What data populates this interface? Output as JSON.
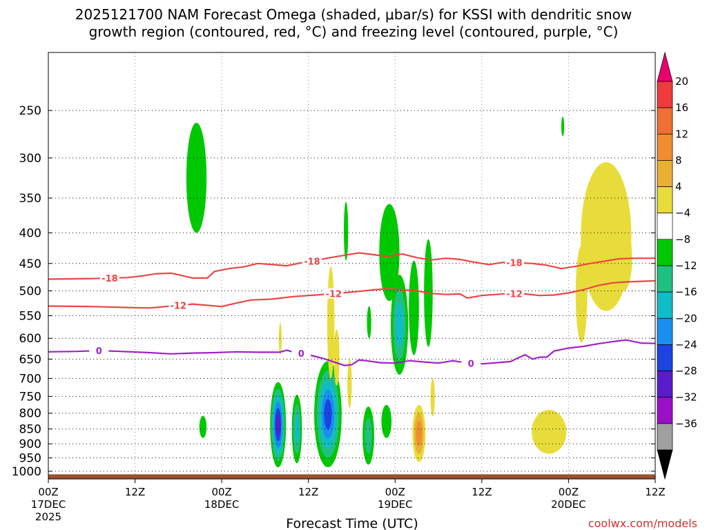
{
  "header": {
    "line1": "2025121700 NAM Forecast Omega (shaded, μbar/s) for KSSI with dendritic snow",
    "line2": "growth region (contoured, red, °C) and freezing level (contoured, purple, °C)"
  },
  "credit": "coolwx.com/models",
  "chart_data": {
    "type": "heatmap",
    "title": "2025121700 NAM Forecast Omega (shaded, μbar/s) for KSSI with dendritic snow growth region (contoured, red, °C) and freezing level (contoured, purple, °C)",
    "xlabel": "Forecast Time (UTC)",
    "ylabel": "",
    "x_unit": "forecast hour from 2025-12-17 00Z",
    "xlim": [
      0,
      84
    ],
    "ylim": [
      1030,
      200
    ],
    "y_scale": "log-pressure",
    "grid": true,
    "x_ticks": [
      {
        "hour": 0,
        "line1": "00Z",
        "line2": "17DEC",
        "line3": "2025"
      },
      {
        "hour": 12,
        "line1": "12Z",
        "line2": "",
        "line3": ""
      },
      {
        "hour": 24,
        "line1": "00Z",
        "line2": "18DEC",
        "line3": ""
      },
      {
        "hour": 36,
        "line1": "12Z",
        "line2": "",
        "line3": ""
      },
      {
        "hour": 48,
        "line1": "00Z",
        "line2": "19DEC",
        "line3": ""
      },
      {
        "hour": 60,
        "line1": "12Z",
        "line2": "",
        "line3": ""
      },
      {
        "hour": 72,
        "line1": "00Z",
        "line2": "20DEC",
        "line3": ""
      },
      {
        "hour": 84,
        "line1": "12Z",
        "line2": "",
        "line3": ""
      }
    ],
    "y_ticks": [
      250,
      300,
      350,
      400,
      450,
      500,
      550,
      600,
      650,
      700,
      750,
      800,
      850,
      900,
      950,
      1000
    ],
    "colorbar": {
      "levels": [
        "20",
        "16",
        "12",
        "8",
        "4",
        "−4",
        "−8",
        "−12",
        "−16",
        "−20",
        "−24",
        "−28",
        "−32",
        "−36"
      ],
      "colors": [
        "#e8006e",
        "#ee3b3b",
        "#ef6f35",
        "#ee8e2e",
        "#eaaf35",
        "#e8dc3a",
        "#ffffff",
        "#00c800",
        "#20c080",
        "#10bcc8",
        "#1a8ff0",
        "#1c44e0",
        "#5a1cc8",
        "#9a10c8",
        "#a0a0a0",
        "#000000"
      ]
    },
    "terrain": {
      "color": "#9a5030",
      "top_pressure": 1012
    },
    "contour_labels": [
      "-18",
      "-12",
      "0"
    ],
    "contours": [
      {
        "name": "-18",
        "color": "#ee4444",
        "points": [
          [
            0,
            478
          ],
          [
            6,
            477
          ],
          [
            11,
            475
          ],
          [
            13,
            472
          ],
          [
            15,
            468
          ],
          [
            17,
            467
          ],
          [
            20,
            476
          ],
          [
            22,
            476
          ],
          [
            23,
            464
          ],
          [
            25,
            459
          ],
          [
            27,
            456
          ],
          [
            29,
            450
          ],
          [
            31,
            452
          ],
          [
            33,
            454
          ],
          [
            35,
            449
          ],
          [
            37,
            445
          ],
          [
            39,
            440
          ],
          [
            41,
            436
          ],
          [
            43,
            432
          ],
          [
            45,
            435
          ],
          [
            47,
            438
          ],
          [
            49,
            434
          ],
          [
            51,
            440
          ],
          [
            53,
            444
          ],
          [
            55,
            441
          ],
          [
            57,
            443
          ],
          [
            59,
            448
          ],
          [
            61,
            452
          ],
          [
            63,
            448
          ],
          [
            65,
            449
          ],
          [
            67,
            450
          ],
          [
            69,
            453
          ],
          [
            71,
            459
          ],
          [
            73,
            455
          ],
          [
            75,
            450
          ],
          [
            77,
            446
          ],
          [
            79,
            442
          ],
          [
            81,
            441
          ],
          [
            84,
            441
          ]
        ],
        "label_hours": [
          8.5,
          36.5,
          64.5
        ]
      },
      {
        "name": "-12",
        "color": "#ee4444",
        "points": [
          [
            0,
            530
          ],
          [
            6,
            531
          ],
          [
            11,
            533
          ],
          [
            14,
            534
          ],
          [
            17,
            530
          ],
          [
            20,
            526
          ],
          [
            24,
            531
          ],
          [
            26,
            524
          ],
          [
            28,
            518
          ],
          [
            31,
            516
          ],
          [
            34,
            511
          ],
          [
            37,
            508
          ],
          [
            40,
            505
          ],
          [
            43,
            501
          ],
          [
            45,
            498
          ],
          [
            47,
            496
          ],
          [
            49,
            498
          ],
          [
            51,
            500
          ],
          [
            53,
            505
          ],
          [
            55,
            507
          ],
          [
            57,
            506
          ],
          [
            58,
            514
          ],
          [
            60,
            509
          ],
          [
            62,
            507
          ],
          [
            64,
            505
          ],
          [
            66,
            506
          ],
          [
            68,
            509
          ],
          [
            70,
            508
          ],
          [
            72,
            504
          ],
          [
            74,
            498
          ],
          [
            76,
            490
          ],
          [
            78,
            485
          ],
          [
            80,
            483
          ],
          [
            84,
            481
          ]
        ],
        "label_hours": [
          18,
          39.5,
          64.5
        ]
      },
      {
        "name": "0",
        "color": "#a020c8",
        "points": [
          [
            0,
            632
          ],
          [
            4,
            631
          ],
          [
            7,
            629
          ],
          [
            10,
            631
          ],
          [
            14,
            634
          ],
          [
            17,
            637
          ],
          [
            20,
            635
          ],
          [
            23,
            634
          ],
          [
            26,
            632
          ],
          [
            29,
            633
          ],
          [
            32,
            633
          ],
          [
            33,
            628
          ],
          [
            34,
            633
          ],
          [
            36,
            639
          ],
          [
            38,
            648
          ],
          [
            40,
            660
          ],
          [
            41,
            666
          ],
          [
            42,
            664
          ],
          [
            43,
            652
          ],
          [
            44,
            654
          ],
          [
            46,
            659
          ],
          [
            48,
            660
          ],
          [
            50,
            654
          ],
          [
            52,
            657
          ],
          [
            54,
            660
          ],
          [
            56,
            654
          ],
          [
            58,
            660
          ],
          [
            60,
            662
          ],
          [
            62,
            659
          ],
          [
            64,
            656
          ],
          [
            65,
            647
          ],
          [
            66,
            639
          ],
          [
            67,
            650
          ],
          [
            68,
            645
          ],
          [
            69,
            645
          ],
          [
            70,
            630
          ],
          [
            72,
            623
          ],
          [
            74,
            619
          ],
          [
            76,
            613
          ],
          [
            78,
            608
          ],
          [
            80,
            604
          ],
          [
            82,
            611
          ],
          [
            84,
            612
          ]
        ],
        "label_hours": [
          7,
          35,
          58.5
        ]
      }
    ],
    "omega_blobs": [
      {
        "h": 20.5,
        "p": 320,
        "w": 1.4,
        "ptop": 262,
        "pbot": 400,
        "value": -6
      },
      {
        "h": 71.2,
        "p": 265,
        "w": 0.2,
        "ptop": 256,
        "pbot": 276,
        "value": -6
      },
      {
        "h": 41.2,
        "p": 400,
        "w": 0.3,
        "ptop": 355,
        "pbot": 445,
        "value": -6
      },
      {
        "h": 47.2,
        "p": 440,
        "w": 1.4,
        "ptop": 358,
        "pbot": 520,
        "value": -6
      },
      {
        "h": 48.6,
        "p": 560,
        "w": 1.2,
        "ptop": 470,
        "pbot": 690,
        "value": -12
      },
      {
        "h": 50.6,
        "p": 540,
        "w": 0.7,
        "ptop": 445,
        "pbot": 640,
        "value": -6
      },
      {
        "h": 52.6,
        "p": 500,
        "w": 0.6,
        "ptop": 410,
        "pbot": 620,
        "value": -6
      },
      {
        "h": 44.4,
        "p": 565,
        "w": 0.3,
        "ptop": 530,
        "pbot": 600,
        "value": -6
      },
      {
        "h": 21.4,
        "p": 840,
        "w": 0.5,
        "ptop": 808,
        "pbot": 880,
        "value": -6
      },
      {
        "h": 31.8,
        "p": 845,
        "w": 1.1,
        "ptop": 710,
        "pbot": 985,
        "value": -26
      },
      {
        "h": 34.4,
        "p": 850,
        "w": 0.7,
        "ptop": 745,
        "pbot": 970,
        "value": -14
      },
      {
        "h": 38.7,
        "p": 850,
        "w": 1.9,
        "ptop": 655,
        "pbot": 985,
        "value": -22
      },
      {
        "h": 44.3,
        "p": 860,
        "w": 0.8,
        "ptop": 780,
        "pbot": 975,
        "value": -8
      },
      {
        "h": 46.8,
        "p": 825,
        "w": 0.7,
        "ptop": 775,
        "pbot": 880,
        "value": -6
      },
      {
        "h": 77.2,
        "p": 420,
        "w": 3.5,
        "ptop": 305,
        "pbot": 540,
        "value": 5
      },
      {
        "h": 73.8,
        "p": 480,
        "w": 0.8,
        "ptop": 420,
        "pbot": 610,
        "value": 5
      },
      {
        "h": 79.6,
        "p": 415,
        "w": 1.2,
        "ptop": 390,
        "pbot": 500,
        "value": 5
      },
      {
        "h": 69.3,
        "p": 855,
        "w": 2.4,
        "ptop": 790,
        "pbot": 935,
        "value": 5
      },
      {
        "h": 39.1,
        "p": 500,
        "w": 0.5,
        "ptop": 455,
        "pbot": 700,
        "value": 5
      },
      {
        "h": 39.9,
        "p": 640,
        "w": 0.4,
        "ptop": 580,
        "pbot": 720,
        "value": 5
      },
      {
        "h": 41.7,
        "p": 700,
        "w": 0.3,
        "ptop": 650,
        "pbot": 785,
        "value": 5
      },
      {
        "h": 32.1,
        "p": 605,
        "w": 0.2,
        "ptop": 565,
        "pbot": 640,
        "value": 5
      },
      {
        "h": 51.3,
        "p": 855,
        "w": 0.9,
        "ptop": 775,
        "pbot": 965,
        "value": 13
      },
      {
        "h": 53.2,
        "p": 730,
        "w": 0.3,
        "ptop": 700,
        "pbot": 810,
        "value": 5
      }
    ]
  }
}
